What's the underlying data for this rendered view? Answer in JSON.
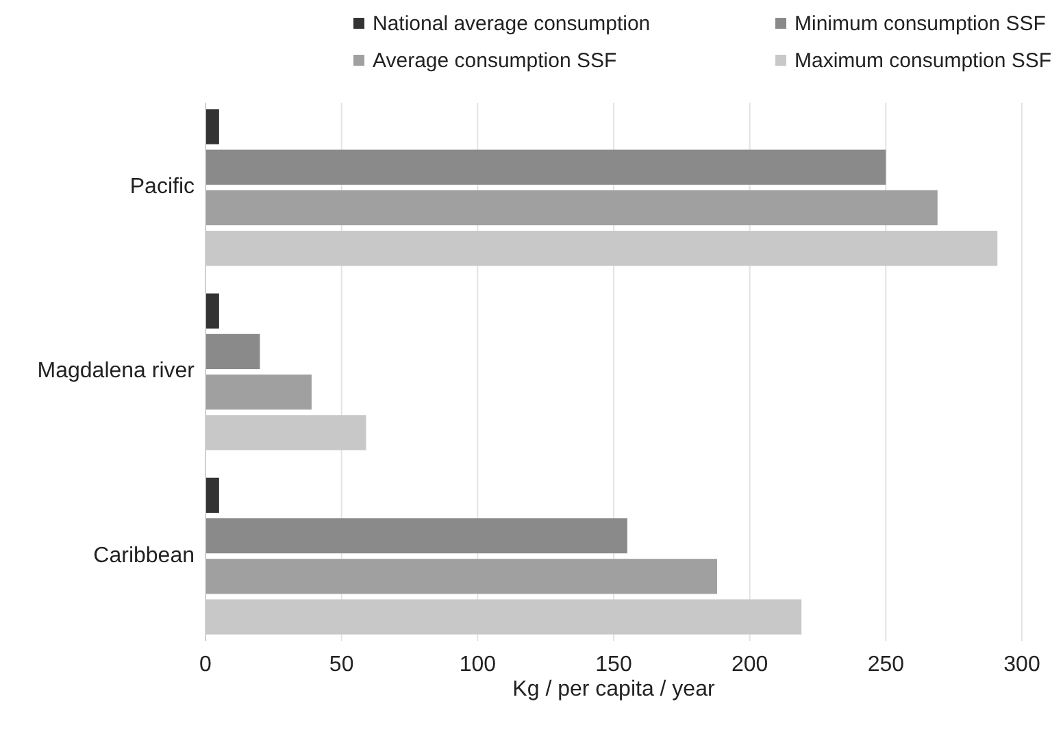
{
  "chart_data": {
    "type": "bar",
    "orientation": "horizontal",
    "xlabel": "Kg / per capita / year",
    "categories": [
      "Pacific",
      "Magdalena river",
      "Caribbean"
    ],
    "series": [
      {
        "name": "National average consumption",
        "color": "#333333",
        "values": [
          5,
          5,
          5
        ]
      },
      {
        "name": "Minimum consumption SSF",
        "color": "#8a8a8a",
        "values": [
          250,
          20,
          155
        ]
      },
      {
        "name": "Average consumption SSF",
        "color": "#a0a0a0",
        "values": [
          269,
          39,
          188
        ]
      },
      {
        "name": "Maximum consumption SSF",
        "color": "#c8c8c8",
        "values": [
          291,
          59,
          219
        ]
      }
    ],
    "xlim": [
      0,
      300
    ],
    "xticks": [
      0,
      50,
      100,
      150,
      200,
      250,
      300
    ],
    "grid": "x",
    "legend": "top"
  }
}
